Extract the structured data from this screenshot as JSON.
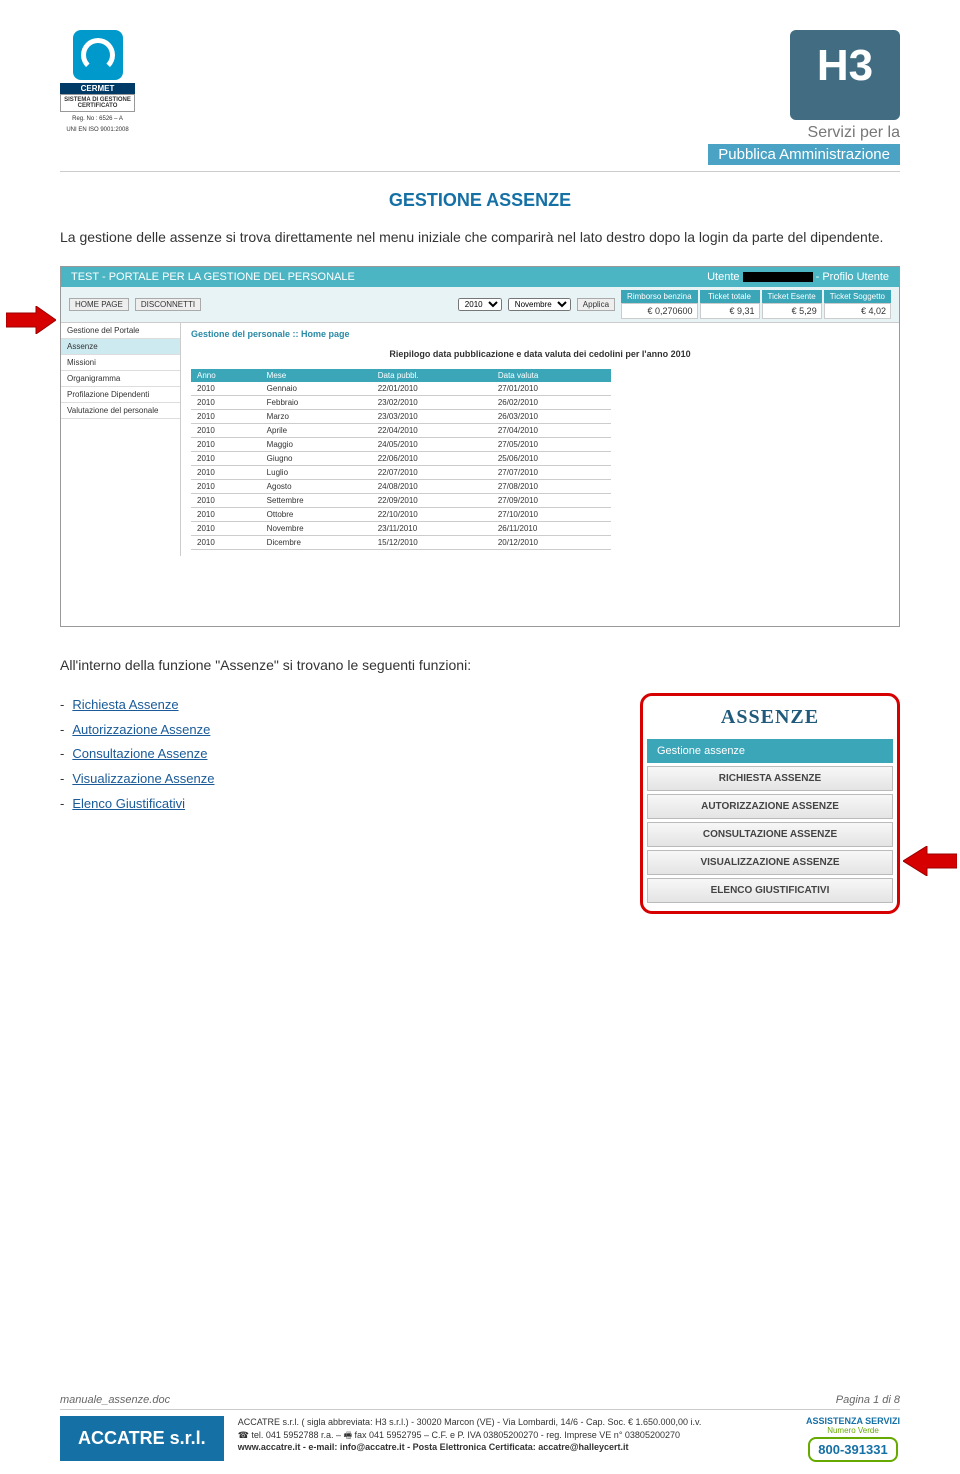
{
  "header": {
    "cert_brand": "CERMET",
    "cert_box": "SISTEMA DI GESTIONE CERTIFICATO",
    "cert_reg1": "Reg. No : 6526 – A",
    "cert_reg2": "UNI EN ISO 9001:2008",
    "h3_text": "H3",
    "brand_line1": "Servizi per la",
    "brand_line2": "Pubblica Amministrazione"
  },
  "title": "GESTIONE ASSENZE",
  "intro": "La gestione delle assenze si trova direttamente nel menu iniziale che comparirà nel lato destro dopo la login da parte del dipendente.",
  "scr1": {
    "title": "TEST - PORTALE PER LA GESTIONE DEL PERSONALE",
    "user_label": "Utente",
    "profile_label": "- Profilo Utente",
    "btn_home": "HOME PAGE",
    "btn_disc": "DISCONNETTI",
    "year": "2010",
    "month": "Novembre",
    "btn_apply": "Applica",
    "tickets": [
      {
        "label": "Rimborso benzina",
        "value": "€ 0,270600"
      },
      {
        "label": "Ticket totale",
        "value": "€ 9,31"
      },
      {
        "label": "Ticket Esente",
        "value": "€ 5,29"
      },
      {
        "label": "Ticket Soggetto",
        "value": "€ 4,02"
      }
    ],
    "sidebar": [
      "Gestione del Portale",
      "Assenze",
      "Missioni",
      "Organigramma",
      "Profilazione Dipendenti",
      "Valutazione del personale"
    ],
    "breadcrumb": "Gestione del personale :: Home page",
    "subtitle": "Riepilogo data pubblicazione e data valuta dei cedolini per l'anno 2010",
    "columns": [
      "Anno",
      "Mese",
      "Data pubbl.",
      "Data valuta"
    ],
    "rows": [
      [
        "2010",
        "Gennaio",
        "22/01/2010",
        "27/01/2010"
      ],
      [
        "2010",
        "Febbraio",
        "23/02/2010",
        "26/02/2010"
      ],
      [
        "2010",
        "Marzo",
        "23/03/2010",
        "26/03/2010"
      ],
      [
        "2010",
        "Aprile",
        "22/04/2010",
        "27/04/2010"
      ],
      [
        "2010",
        "Maggio",
        "24/05/2010",
        "27/05/2010"
      ],
      [
        "2010",
        "Giugno",
        "22/06/2010",
        "25/06/2010"
      ],
      [
        "2010",
        "Luglio",
        "22/07/2010",
        "27/07/2010"
      ],
      [
        "2010",
        "Agosto",
        "24/08/2010",
        "27/08/2010"
      ],
      [
        "2010",
        "Settembre",
        "22/09/2010",
        "27/09/2010"
      ],
      [
        "2010",
        "Ottobre",
        "22/10/2010",
        "27/10/2010"
      ],
      [
        "2010",
        "Novembre",
        "23/11/2010",
        "26/11/2010"
      ],
      [
        "2010",
        "Dicembre",
        "15/12/2010",
        "20/12/2010"
      ]
    ]
  },
  "mid_text": "All'interno della funzione \"Assenze\" si trovano le seguenti funzioni:",
  "links": [
    "Richiesta Assenze",
    "Autorizzazione Assenze",
    "Consultazione Assenze",
    "Visualizzazione Assenze",
    "Elenco Giustificativi"
  ],
  "panel": {
    "title": "ASSENZE",
    "head": "Gestione assenze",
    "items": [
      "RICHIESTA ASSENZE",
      "AUTORIZZAZIONE ASSENZE",
      "CONSULTAZIONE ASSENZE",
      "VISUALIZZAZIONE ASSENZE",
      "ELENCO GIUSTIFICATIVI"
    ]
  },
  "footer": {
    "doc": "manuale_assenze.doc",
    "page": "Pagina 1 di 8",
    "company": "ACCATRE s.r.l.",
    "line1": "ACCATRE s.r.l. ( sigla abbreviata: H3 s.r.l.) - 30020 Marcon (VE) - Via Lombardi, 14/6 - Cap. Soc. € 1.650.000,00 i.v.",
    "line2": "☎ tel. 041 5952788 r.a. – 🖷 fax 041 5952795 – C.F. e P. IVA 03805200270 - reg. Imprese VE n° 03805200270",
    "line3": "www.accatre.it   -   e-mail: info@accatre.it   -   Posta Elettronica Certificata: accatre@halleycert.it",
    "assist_label": "ASSISTENZA SERVIZI",
    "assist_sub": "Numero Verde",
    "assist_num": "800-391331"
  },
  "colors": {
    "teal": "#3aa6b8",
    "blue": "#1570a6",
    "red": "#d60000"
  }
}
